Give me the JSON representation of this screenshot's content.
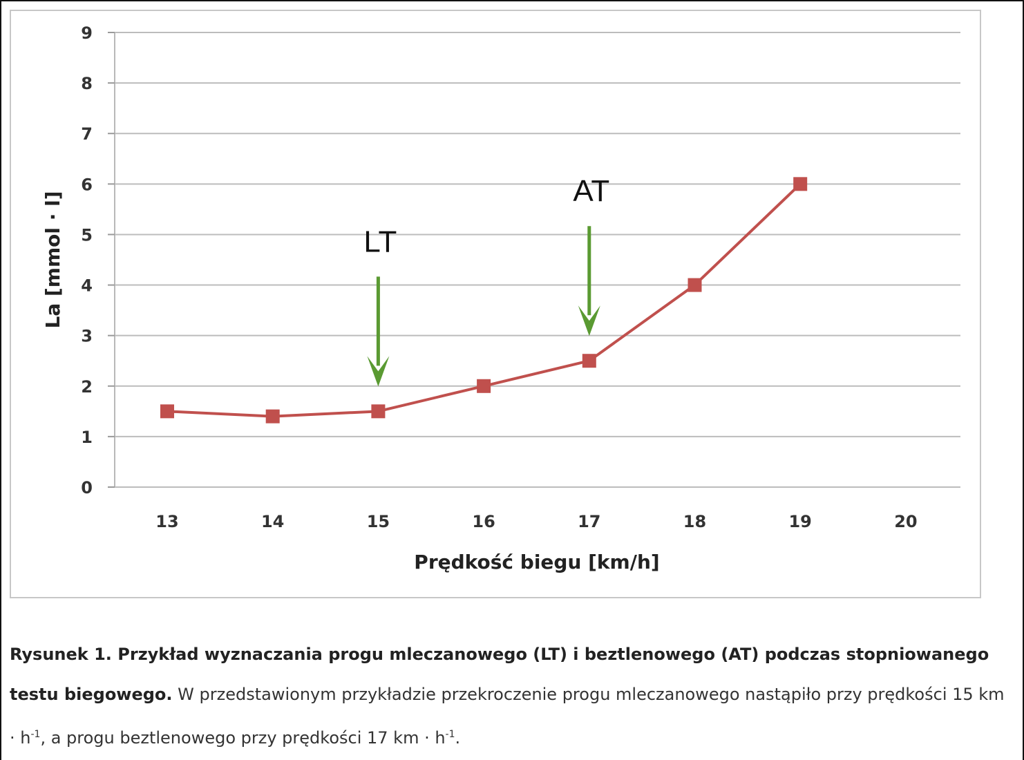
{
  "chart_data": {
    "type": "line",
    "xlabel": "Prędkość biegu [km/h]",
    "ylabel": "La [mmol · l]",
    "categories": [
      "13",
      "14",
      "15",
      "16",
      "17",
      "18",
      "19",
      "20"
    ],
    "series": [
      {
        "name": "La",
        "x": [
          13,
          14,
          15,
          16,
          17,
          18,
          19
        ],
        "values": [
          1.5,
          1.4,
          1.5,
          2.0,
          2.5,
          4.0,
          6.0
        ],
        "color": "#c0504d"
      }
    ],
    "ylim": [
      0,
      9
    ],
    "yticks": [
      "0",
      "1",
      "2",
      "3",
      "4",
      "5",
      "6",
      "7",
      "8",
      "9"
    ],
    "grid": true,
    "annotations": [
      {
        "label": "LT",
        "x": 15,
        "color": "#5a9a32"
      },
      {
        "label": "AT",
        "x": 17,
        "color": "#5a9a32"
      }
    ]
  },
  "caption": {
    "title": "Rysunek 1.  Przykład wyznaczania progu mleczanowego (LT) i beztlenowego (AT) podczas stopniowanego testu biegowego.",
    "text": " W przedstawionym przykładzie przekroczenie progu mleczanowego nastąpiło przy prędkości 15 km · h",
    "sup1": "-1",
    "text2": ", a progu beztlenowego przy prędkości 17 km · h",
    "sup2": "-1",
    "end": "."
  }
}
